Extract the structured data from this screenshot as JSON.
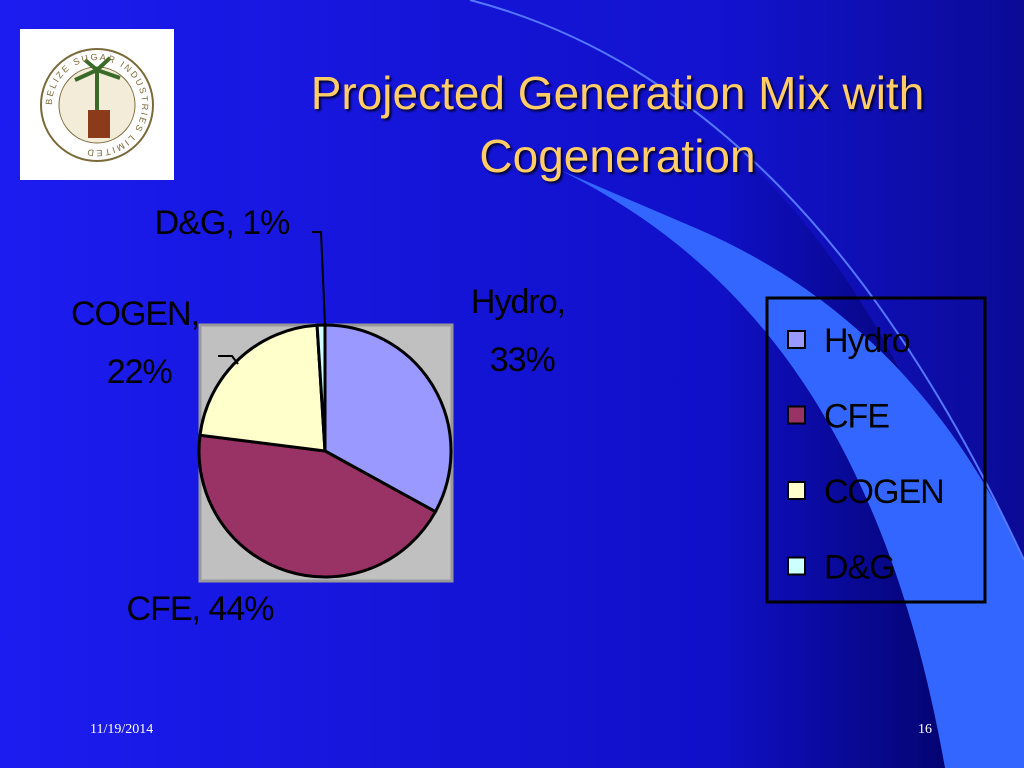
{
  "chart_data": {
    "type": "pie",
    "title": "Projected Generation Mix with Cogeneration",
    "categories": [
      "Hydro",
      "CFE",
      "COGEN",
      "D&G"
    ],
    "values": [
      33,
      44,
      22,
      1
    ],
    "value_labels": [
      "Hydro, 33%",
      "CFE, 44%",
      "COGEN, 22%",
      "D&G, 1%"
    ],
    "colors": [
      "#9999ff",
      "#993366",
      "#ffffcc",
      "#ccffff"
    ],
    "legend": "right"
  },
  "logo_text": "BELIZE SUGAR INDUSTRIES LIMITED",
  "footer": {
    "date": "11/19/2014",
    "page": "16"
  }
}
